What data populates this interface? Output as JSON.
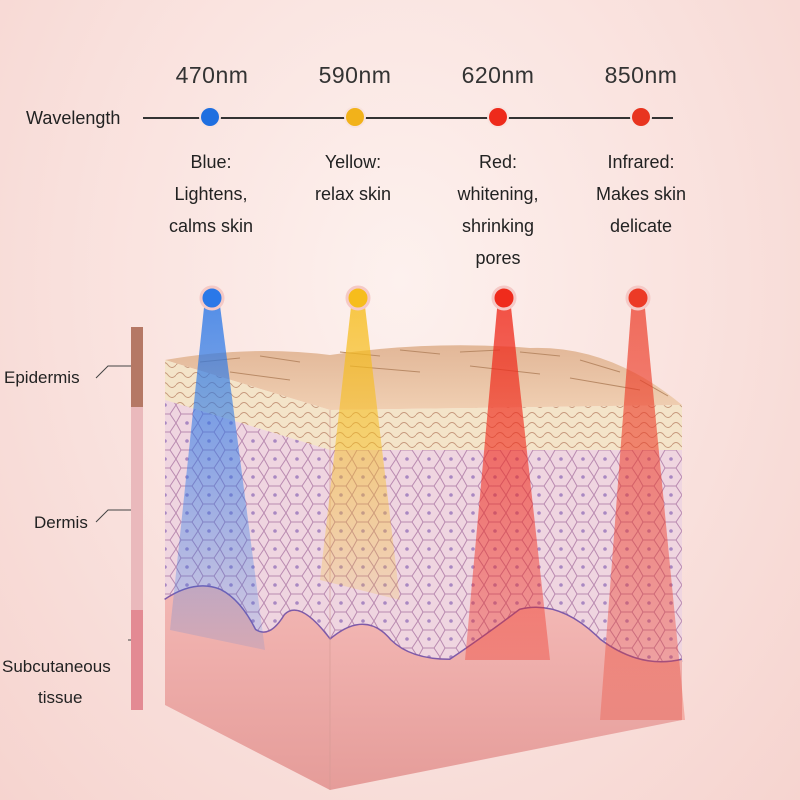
{
  "wavelength_label": "Wavelength",
  "wavelengths": [
    {
      "nm": "470nm",
      "color": "#1f6fe0",
      "line1": "Blue:",
      "line2": "Lightens,",
      "line3": "calms skin",
      "line4": ""
    },
    {
      "nm": "590nm",
      "color": "#f2b21a",
      "line1": "Yellow:",
      "line2": "relax skin",
      "line3": "",
      "line4": ""
    },
    {
      "nm": "620nm",
      "color": "#ee2a1b",
      "line1": "Red:",
      "line2": "whitening,",
      "line3": "shrinking",
      "line4": "pores"
    },
    {
      "nm": "850nm",
      "color": "#e8341f",
      "line1": "Infrared:",
      "line2": "Makes skin",
      "line3": "delicate",
      "line4": ""
    }
  ],
  "layers": {
    "epidermis": "Epidermis",
    "dermis": "Dermis",
    "subcutaneous_1": "Subcutaneous",
    "subcutaneous_2": "tissue"
  },
  "colors": {
    "epidermis_bar": "#b57865",
    "dermis_bar": "#eab9bc",
    "subcutaneous_bar": "#e38a93"
  }
}
